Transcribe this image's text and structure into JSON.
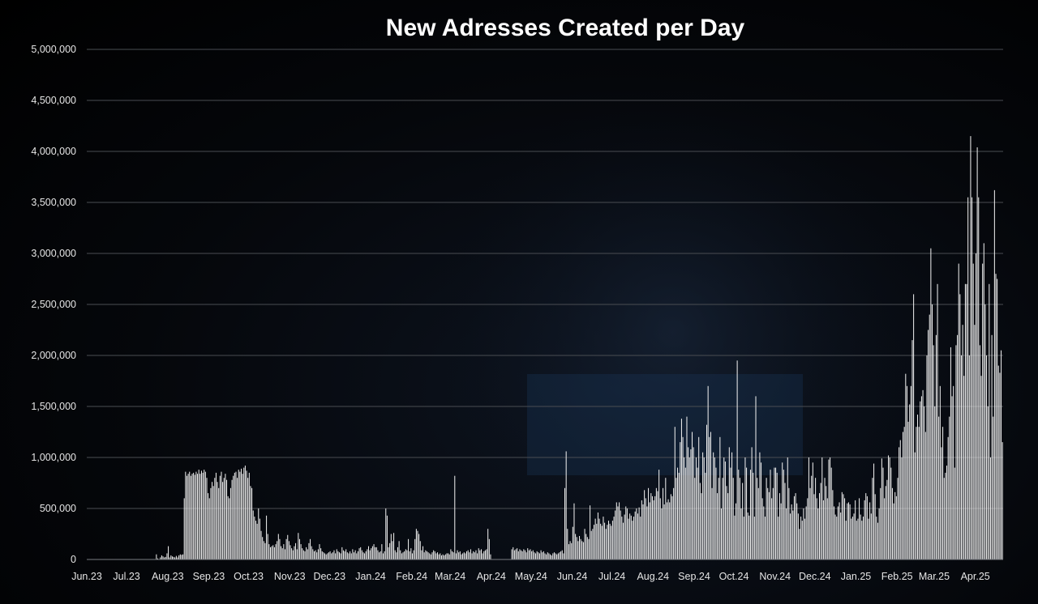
{
  "chart_data": {
    "type": "bar",
    "title": "New Adresses Created per Day",
    "xlabel": "",
    "ylabel": "",
    "ylim": [
      0,
      5000000
    ],
    "yticks": [
      "0",
      "500,000",
      "1,000,000",
      "1,500,000",
      "2,000,000",
      "2,500,000",
      "3,000,000",
      "3,500,000",
      "4,000,000",
      "4,500,000",
      "5,000,000"
    ],
    "xticks": [
      "Jun.23",
      "Jul.23",
      "Aug.23",
      "Sep.23",
      "Oct.23",
      "Nov.23",
      "Dec.23",
      "Jan.24",
      "Feb.24",
      "Mar.24",
      "Apr.24",
      "May.24",
      "Jun.24",
      "Jul.24",
      "Aug.24",
      "Sep.24",
      "Oct.24",
      "Nov.24",
      "Dec.24",
      "Jan.25",
      "Feb.25",
      "Mar.25",
      "Apr.25"
    ],
    "grid": true,
    "legend": "none",
    "bar_color": "#f2f2f2",
    "background_color": "#000000",
    "series": [
      {
        "monthly_values": [
          [
            0,
            0,
            0,
            0,
            0,
            0,
            0,
            0,
            0,
            0,
            0,
            0,
            0,
            0,
            0,
            0,
            0,
            0,
            0,
            0,
            0,
            0,
            0,
            0,
            0,
            0,
            0,
            0,
            0,
            0
          ],
          [
            0,
            0,
            0,
            0,
            0,
            0,
            0,
            0,
            0,
            0,
            0,
            0,
            0,
            0,
            0,
            0,
            0,
            0,
            0,
            0,
            0,
            0,
            50000,
            10000,
            0,
            20000,
            40000,
            30000,
            20000,
            25000,
            60000
          ],
          [
            130000,
            20000,
            40000,
            30000,
            25000,
            20000,
            35000,
            20000,
            40000,
            50000,
            45000,
            50000,
            600000,
            860000,
            820000,
            840000,
            860000,
            820000,
            840000,
            850000,
            830000,
            860000,
            840000,
            880000,
            840000,
            870000,
            850000,
            880000,
            860000,
            800000,
            650000
          ],
          [
            600000,
            700000,
            760000,
            720000,
            800000,
            850000,
            760000,
            700000,
            820000,
            860000,
            760000,
            800000,
            840000,
            780000,
            620000,
            600000,
            700000,
            780000,
            820000,
            850000,
            860000,
            800000,
            880000,
            860000,
            890000,
            840000,
            900000,
            920000,
            870000,
            800000
          ],
          [
            850000,
            720000,
            700000,
            480000,
            420000,
            380000,
            350000,
            500000,
            400000,
            280000,
            220000,
            180000,
            160000,
            430000,
            250000,
            150000,
            120000,
            130000,
            140000,
            120000,
            150000,
            180000,
            250000,
            200000,
            130000,
            110000,
            150000,
            100000,
            200000,
            240000,
            180000
          ],
          [
            140000,
            110000,
            90000,
            130000,
            160000,
            100000,
            260000,
            200000,
            150000,
            110000,
            90000,
            80000,
            120000,
            100000,
            160000,
            200000,
            130000,
            100000,
            80000,
            90000,
            70000,
            100000,
            150000,
            110000,
            80000,
            70000,
            60000,
            50000,
            60000,
            70000
          ],
          [
            80000,
            60000,
            70000,
            90000,
            60000,
            100000,
            80000,
            70000,
            60000,
            120000,
            90000,
            80000,
            100000,
            70000,
            60000,
            80000,
            60000,
            100000,
            70000,
            90000,
            60000,
            80000,
            110000,
            120000,
            90000,
            70000,
            60000,
            80000,
            100000,
            130000,
            90000
          ],
          [
            110000,
            130000,
            150000,
            120000,
            120000,
            90000,
            70000,
            80000,
            150000,
            60000,
            80000,
            500000,
            430000,
            120000,
            160000,
            250000,
            180000,
            260000,
            90000,
            70000,
            120000,
            180000,
            90000,
            60000,
            70000,
            80000,
            100000,
            90000,
            200000,
            80000,
            110000
          ],
          [
            60000,
            90000,
            200000,
            300000,
            280000,
            250000,
            180000,
            90000,
            130000,
            70000,
            90000,
            80000,
            70000,
            60000,
            50000,
            70000,
            90000,
            80000,
            60000,
            70000,
            50000,
            60000,
            40000,
            50000,
            40000,
            50000,
            60000,
            60000,
            50000
          ],
          [
            100000,
            80000,
            70000,
            820000,
            60000,
            90000,
            70000,
            80000,
            50000,
            60000,
            70000,
            60000,
            80000,
            90000,
            70000,
            100000,
            60000,
            80000,
            70000,
            90000,
            60000,
            110000,
            90000,
            100000,
            60000,
            80000,
            90000,
            100000,
            300000,
            200000,
            50000
          ],
          [
            0,
            0,
            0,
            0,
            0,
            0,
            0,
            0,
            0,
            0,
            0,
            0,
            0,
            0,
            0,
            100000,
            120000,
            90000,
            100000,
            110000,
            80000,
            100000,
            90000,
            80000,
            100000,
            90000,
            70000,
            110000,
            90000,
            100000
          ],
          [
            80000,
            90000,
            70000,
            60000,
            80000,
            70000,
            60000,
            90000,
            70000,
            80000,
            60000,
            50000,
            70000,
            60000,
            50000,
            40000,
            60000,
            70000,
            60000,
            50000,
            60000,
            70000,
            80000,
            90000,
            60000,
            700000,
            1060000,
            300000,
            150000,
            180000,
            160000
          ],
          [
            320000,
            550000,
            250000,
            220000,
            180000,
            230000,
            200000,
            180000,
            170000,
            300000,
            250000,
            220000,
            200000,
            530000,
            280000,
            300000,
            340000,
            400000,
            350000,
            460000,
            400000,
            350000,
            330000,
            420000,
            360000,
            300000,
            340000,
            380000,
            350000,
            330000
          ],
          [
            380000,
            420000,
            480000,
            560000,
            520000,
            560000,
            480000,
            420000,
            360000,
            440000,
            520000,
            500000,
            400000,
            450000,
            430000,
            380000,
            420000,
            470000,
            500000,
            450000,
            510000,
            420000,
            580000,
            540000,
            680000,
            600000,
            520000,
            700000,
            560000,
            650000,
            620000
          ],
          [
            580000,
            620000,
            700000,
            670000,
            880000,
            600000,
            500000,
            700000,
            540000,
            800000,
            560000,
            590000,
            560000,
            640000,
            620000,
            700000,
            1300000,
            800000,
            900000,
            850000,
            1150000,
            1380000,
            1200000,
            1000000,
            900000,
            1400000,
            1100000,
            1000000,
            1080000,
            1250000,
            1100000
          ],
          [
            800000,
            1000000,
            900000,
            1200000,
            750000,
            650000,
            1050000,
            1000000,
            850000,
            1320000,
            1700000,
            1200000,
            1250000,
            700000,
            1050000,
            1000000,
            900000,
            650000,
            800000,
            1200000,
            500000,
            800000,
            1000000,
            960000,
            720000,
            650000,
            1100000,
            900000,
            1050000,
            800000
          ],
          [
            430000,
            550000,
            1950000,
            880000,
            800000,
            500000,
            750000,
            420000,
            1000000,
            900000,
            460000,
            430000,
            880000,
            1100000,
            850000,
            420000,
            1600000,
            800000,
            700000,
            1050000,
            950000,
            600000,
            520000,
            420000,
            800000,
            700000,
            660000,
            880000,
            600000,
            700000,
            900000
          ],
          [
            900000,
            850000,
            420000,
            650000,
            550000,
            950000,
            880000,
            750000,
            500000,
            1000000,
            700000,
            450000,
            540000,
            480000,
            620000,
            650000,
            550000,
            450000,
            300000,
            420000,
            380000,
            500000,
            400000,
            520000,
            600000,
            1000000,
            700000,
            820000,
            950000,
            640000
          ],
          [
            800000,
            600000,
            500000,
            650000,
            750000,
            1000000,
            580000,
            800000,
            720000,
            600000,
            980000,
            1000000,
            900000,
            680000,
            520000,
            440000,
            420000,
            520000,
            560000,
            460000,
            660000,
            640000,
            600000,
            380000,
            550000,
            560000,
            540000,
            400000,
            420000,
            450000,
            580000
          ],
          [
            380000,
            400000,
            600000,
            440000,
            380000,
            420000,
            580000,
            650000,
            620000,
            400000,
            560000,
            450000,
            800000,
            940000,
            640000,
            420000,
            360000,
            500000,
            700000,
            990000,
            900000,
            600000,
            720000,
            780000,
            1020000,
            1000000,
            900000,
            700000,
            550000,
            660000,
            620000
          ],
          [
            800000,
            1100000,
            1170000,
            1000000,
            1250000,
            1300000,
            1820000,
            1700000,
            1350000,
            1520000,
            1700000,
            2150000,
            2600000,
            1050000,
            1300000,
            1420000,
            1300000,
            1550000,
            1600000,
            1660000,
            1500000,
            1250000,
            2000000,
            2250000,
            2400000,
            3050000,
            2500000,
            2100000
          ],
          [
            1500000,
            2200000,
            2700000,
            1400000,
            1700000,
            1100000,
            1300000,
            800000,
            850000,
            920000,
            1200000,
            1400000,
            2080000,
            1600000,
            1700000,
            900000,
            2100000,
            2200000,
            2900000,
            2600000,
            2000000,
            2300000,
            1800000,
            2700000,
            2700000,
            3550000,
            2000000,
            4150000,
            3550000,
            2900000,
            2300000
          ],
          [
            3000000,
            4040000,
            3550000,
            2100000,
            1800000,
            2900000,
            3100000,
            2500000,
            2000000,
            1500000,
            2700000,
            1000000,
            2200000,
            1400000,
            3620000,
            2800000,
            2750000,
            1900000,
            1830000,
            2050000,
            1150000
          ]
        ]
      }
    ]
  }
}
